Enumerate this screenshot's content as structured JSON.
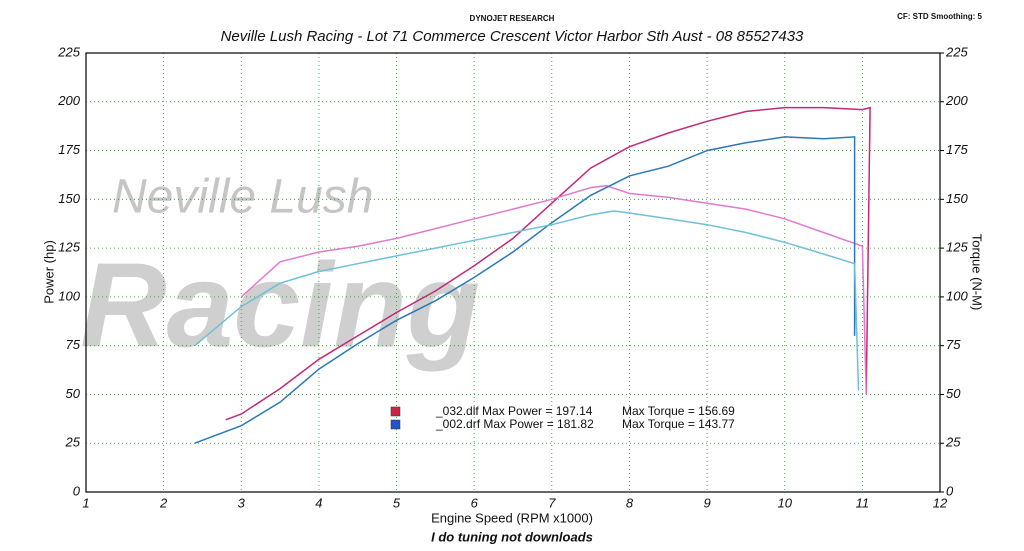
{
  "chart_data": {
    "type": "line",
    "header": "DYNOJET RESEARCH",
    "settings_text": "CF: STD  Smoothing: 5",
    "title": "Neville Lush Racing  - Lot 71 Commerce Crescent  Victor Harbor Sth Aust  - 08 85527433",
    "xlabel": "Engine Speed (RPM x1000)",
    "ylabel": "Power (hp)",
    "y2label": "Torque (N-M)",
    "footer": "I do tuning not downloads",
    "watermark": [
      "Neville Lush",
      "Racing"
    ],
    "xlim": [
      1,
      12
    ],
    "xticks": [
      1,
      2,
      3,
      4,
      5,
      6,
      7,
      8,
      9,
      10,
      11,
      12
    ],
    "ylim": [
      0,
      225
    ],
    "yticks": [
      0,
      25,
      50,
      75,
      100,
      125,
      150,
      175,
      200,
      225
    ],
    "y2lim": [
      0,
      225
    ],
    "y2ticks": [
      0,
      25,
      50,
      75,
      100,
      125,
      150,
      175,
      200,
      225
    ],
    "grid": true,
    "legend": [
      {
        "text": "_032.dlf Max Power = 197.14",
        "torque_text": "Max Torque = 156.69",
        "color": "#cc2244"
      },
      {
        "text": "_002.drf Max Power = 181.82",
        "torque_text": "Max Torque = 143.77",
        "color": "#2255cc"
      }
    ],
    "series": [
      {
        "color": "#c02a78",
        "x": [
          2.8,
          3,
          3.5,
          4,
          4.5,
          5,
          5.5,
          6,
          6.5,
          7,
          7.5,
          8,
          8.5,
          9,
          9.5,
          10,
          10.5,
          11,
          11.1,
          11.05
        ],
        "values": [
          37,
          40,
          53,
          68,
          80,
          92,
          103,
          116,
          130,
          148,
          166,
          177,
          184,
          190,
          195,
          197,
          197,
          196,
          197,
          50
        ]
      },
      {
        "color": "#e07ad0",
        "axis": "y2",
        "x": [
          3,
          3.5,
          4,
          4.5,
          5,
          5.5,
          6,
          6.5,
          7,
          7.5,
          7.7,
          8,
          8.5,
          9,
          9.5,
          10,
          10.5,
          11,
          11.05
        ],
        "values": [
          100,
          118,
          123,
          126,
          130,
          135,
          140,
          145,
          150,
          156,
          157,
          153,
          151,
          148,
          145,
          140,
          133,
          126,
          50
        ]
      },
      {
        "color": "#2a78b8",
        "x": [
          2.4,
          3,
          3.5,
          4,
          4.5,
          5,
          5.5,
          6,
          6.5,
          7,
          7.5,
          8,
          8.5,
          9,
          9.5,
          10,
          10.5,
          10.9,
          10.9
        ],
        "values": [
          25,
          34,
          46,
          63,
          76,
          88,
          98,
          110,
          123,
          138,
          152,
          162,
          167,
          175,
          179,
          182,
          181,
          182,
          80
        ]
      },
      {
        "color": "#6ec0d8",
        "axis": "y2",
        "x": [
          2.4,
          3,
          3.5,
          4,
          4.5,
          5,
          5.5,
          6,
          6.5,
          7,
          7.5,
          7.8,
          8,
          8.5,
          9,
          9.5,
          10,
          10.5,
          10.9,
          10.95
        ],
        "values": [
          75,
          95,
          107,
          113,
          117,
          121,
          125,
          129,
          133,
          137,
          142,
          144,
          143,
          140,
          137,
          133,
          128,
          122,
          117,
          52
        ]
      }
    ]
  }
}
